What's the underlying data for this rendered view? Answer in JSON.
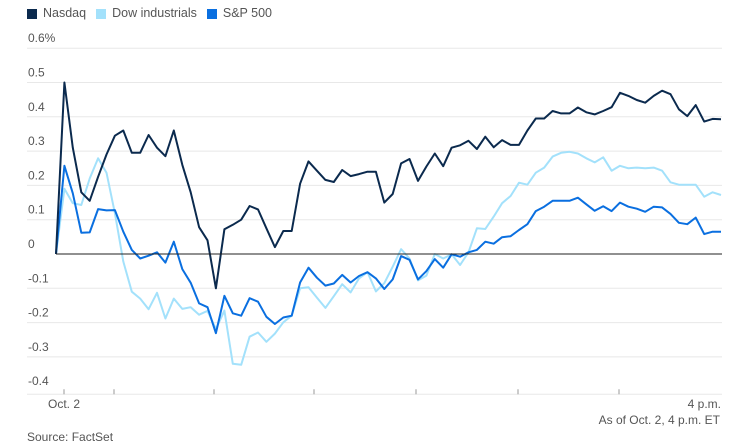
{
  "chart_data": {
    "type": "line",
    "title": "",
    "xlabel": "",
    "ylabel": "",
    "x_tick_labels": {
      "start": "Oct. 2",
      "end": "4 p.m."
    },
    "y_ticks": [
      0.6,
      0.5,
      0.4,
      0.3,
      0.2,
      0.1,
      0,
      -0.1,
      -0.2,
      -0.3,
      -0.4
    ],
    "y_tick_labels": [
      "0.6%",
      "0.5",
      "0.4",
      "0.3",
      "0.2",
      "0.1",
      "0",
      "-0.1",
      "-0.2",
      "-0.3",
      "-0.4"
    ],
    "ylim": [
      -0.4,
      0.6
    ],
    "grid": true,
    "legend_position": "top-left",
    "series": [
      {
        "name": "Nasdaq",
        "color": "#0b2a4e",
        "values": [
          0,
          0.5,
          0.31,
          0.18,
          0.155,
          0.225,
          0.29,
          0.345,
          0.36,
          0.295,
          0.295,
          0.347,
          0.31,
          0.285,
          0.36,
          0.26,
          0.18,
          0.078,
          0.04,
          -0.1,
          0.072,
          0.085,
          0.1,
          0.14,
          0.13,
          0.075,
          0.02,
          0.067,
          0.067,
          0.205,
          0.27,
          0.243,
          0.216,
          0.21,
          0.245,
          0.227,
          0.233,
          0.24,
          0.24,
          0.15,
          0.175,
          0.264,
          0.277,
          0.213,
          0.255,
          0.293,
          0.256,
          0.31,
          0.317,
          0.33,
          0.306,
          0.342,
          0.311,
          0.332,
          0.318,
          0.318,
          0.36,
          0.395,
          0.395,
          0.417,
          0.41,
          0.41,
          0.427,
          0.413,
          0.407,
          0.417,
          0.428,
          0.47,
          0.461,
          0.449,
          0.441,
          0.461,
          0.476,
          0.466,
          0.422,
          0.402,
          0.434,
          0.386,
          0.394,
          0.393
        ]
      },
      {
        "name": "Dow industrials",
        "color": "#a3e1fb",
        "values": [
          0,
          0.19,
          0.148,
          0.143,
          0.22,
          0.279,
          0.237,
          0.119,
          -0.022,
          -0.11,
          -0.13,
          -0.161,
          -0.113,
          -0.188,
          -0.13,
          -0.16,
          -0.155,
          -0.177,
          -0.166,
          -0.219,
          -0.165,
          -0.32,
          -0.323,
          -0.241,
          -0.229,
          -0.256,
          -0.232,
          -0.199,
          -0.18,
          -0.1,
          -0.097,
          -0.127,
          -0.157,
          -0.123,
          -0.088,
          -0.112,
          -0.071,
          -0.053,
          -0.109,
          -0.085,
          -0.037,
          0.014,
          -0.013,
          -0.077,
          -0.063,
          0.0,
          -0.013,
          -0.001,
          -0.032,
          0.005,
          0.075,
          0.073,
          0.109,
          0.148,
          0.169,
          0.208,
          0.202,
          0.237,
          0.252,
          0.284,
          0.295,
          0.298,
          0.293,
          0.279,
          0.267,
          0.282,
          0.243,
          0.257,
          0.25,
          0.252,
          0.25,
          0.252,
          0.243,
          0.209,
          0.202,
          0.202,
          0.202,
          0.167,
          0.18,
          0.172
        ]
      },
      {
        "name": "S&P 500",
        "color": "#0a6fe0",
        "values": [
          0,
          0.257,
          0.177,
          0.062,
          0.063,
          0.131,
          0.127,
          0.128,
          0.065,
          0.012,
          -0.013,
          -0.005,
          0.005,
          -0.025,
          0.036,
          -0.044,
          -0.084,
          -0.144,
          -0.155,
          -0.231,
          -0.122,
          -0.173,
          -0.18,
          -0.129,
          -0.139,
          -0.183,
          -0.204,
          -0.185,
          -0.18,
          -0.083,
          -0.04,
          -0.069,
          -0.092,
          -0.086,
          -0.061,
          -0.083,
          -0.064,
          -0.053,
          -0.071,
          -0.102,
          -0.074,
          -0.006,
          -0.017,
          -0.074,
          -0.05,
          -0.015,
          -0.04,
          -0.001,
          -0.008,
          0.005,
          0.012,
          0.036,
          0.03,
          0.049,
          0.052,
          0.07,
          0.087,
          0.125,
          0.138,
          0.155,
          0.155,
          0.155,
          0.164,
          0.145,
          0.126,
          0.139,
          0.125,
          0.15,
          0.138,
          0.132,
          0.123,
          0.138,
          0.136,
          0.117,
          0.091,
          0.087,
          0.106,
          0.058,
          0.065,
          0.065
        ]
      }
    ]
  },
  "footer": {
    "as_of": "As of Oct. 2, 4 p.m. ET",
    "source": "Source: FactSet"
  }
}
